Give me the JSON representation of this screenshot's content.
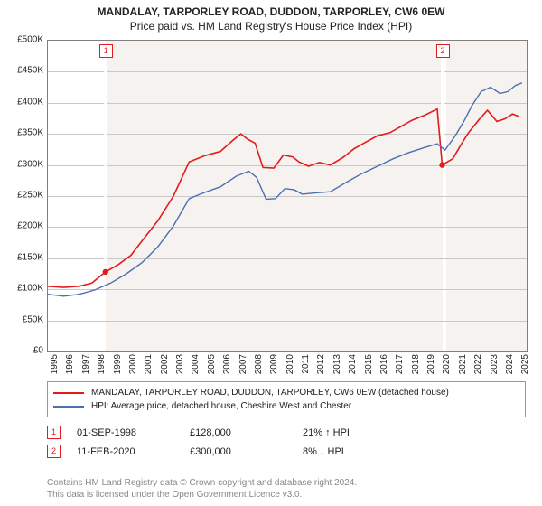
{
  "title_line1": "MANDALAY, TARPORLEY ROAD, DUDDON, TARPORLEY, CW6 0EW",
  "title_line2": "Price paid vs. HM Land Registry's House Price Index (HPI)",
  "chart": {
    "type": "line",
    "background_color": "#ffffff",
    "shade_color": "#f6f2ef",
    "grid_color": "#c8c8c8",
    "border_color": "#7f7f7f",
    "x_years": [
      1995,
      1996,
      1997,
      1998,
      1999,
      2000,
      2001,
      2002,
      2003,
      2004,
      2005,
      2006,
      2007,
      2008,
      2009,
      2010,
      2011,
      2012,
      2013,
      2014,
      2015,
      2016,
      2017,
      2018,
      2019,
      2020,
      2021,
      2022,
      2023,
      2024,
      2025
    ],
    "x_range": [
      1995,
      2025.5
    ],
    "ylim": [
      0,
      500000
    ],
    "ytick_step": 50000,
    "y_labels": [
      "£0",
      "£50K",
      "£100K",
      "£150K",
      "£200K",
      "£250K",
      "£300K",
      "£350K",
      "£400K",
      "£450K",
      "£500K"
    ],
    "tick_fontsize": 10,
    "series": [
      {
        "name": "red",
        "color": "#e41a1c",
        "width": 1.6,
        "points": [
          [
            1995,
            105000
          ],
          [
            1996,
            103000
          ],
          [
            1997,
            105000
          ],
          [
            1997.8,
            110000
          ],
          [
            1998.67,
            128000
          ],
          [
            1999.5,
            140000
          ],
          [
            2000.3,
            155000
          ],
          [
            2001,
            178000
          ],
          [
            2002,
            210000
          ],
          [
            2003,
            250000
          ],
          [
            2004,
            305000
          ],
          [
            2005,
            315000
          ],
          [
            2006,
            322000
          ],
          [
            2006.8,
            340000
          ],
          [
            2007.3,
            350000
          ],
          [
            2007.7,
            342000
          ],
          [
            2008.2,
            335000
          ],
          [
            2008.7,
            296000
          ],
          [
            2009.4,
            295000
          ],
          [
            2010,
            316000
          ],
          [
            2010.6,
            313000
          ],
          [
            2011,
            305000
          ],
          [
            2011.6,
            298000
          ],
          [
            2012.3,
            304000
          ],
          [
            2013,
            300000
          ],
          [
            2013.8,
            312000
          ],
          [
            2014.5,
            326000
          ],
          [
            2015.2,
            336000
          ],
          [
            2016,
            347000
          ],
          [
            2016.8,
            352000
          ],
          [
            2017.5,
            362000
          ],
          [
            2018.2,
            372000
          ],
          [
            2019,
            380000
          ],
          [
            2019.8,
            390000
          ],
          [
            2020.12,
            300000
          ],
          [
            2020.8,
            310000
          ],
          [
            2021.3,
            332000
          ],
          [
            2021.8,
            352000
          ],
          [
            2022.5,
            374000
          ],
          [
            2023,
            388000
          ],
          [
            2023.6,
            370000
          ],
          [
            2024.1,
            374000
          ],
          [
            2024.6,
            382000
          ],
          [
            2025,
            378000
          ]
        ]
      },
      {
        "name": "blue",
        "color": "#4a6fb3",
        "width": 1.4,
        "points": [
          [
            1995,
            92000
          ],
          [
            1996,
            89000
          ],
          [
            1997,
            92000
          ],
          [
            1998,
            99000
          ],
          [
            1999,
            110000
          ],
          [
            2000,
            125000
          ],
          [
            2001,
            143000
          ],
          [
            2002,
            168000
          ],
          [
            2003,
            202000
          ],
          [
            2004,
            246000
          ],
          [
            2005,
            256000
          ],
          [
            2006,
            265000
          ],
          [
            2007,
            282000
          ],
          [
            2007.8,
            290000
          ],
          [
            2008.3,
            280000
          ],
          [
            2008.9,
            245000
          ],
          [
            2009.5,
            246000
          ],
          [
            2010.1,
            262000
          ],
          [
            2010.7,
            260000
          ],
          [
            2011.2,
            253000
          ],
          [
            2012,
            255000
          ],
          [
            2013,
            257000
          ],
          [
            2014,
            272000
          ],
          [
            2015,
            286000
          ],
          [
            2016,
            298000
          ],
          [
            2017,
            310000
          ],
          [
            2018,
            320000
          ],
          [
            2019,
            328000
          ],
          [
            2019.8,
            334000
          ],
          [
            2020.3,
            324000
          ],
          [
            2020.9,
            345000
          ],
          [
            2021.5,
            370000
          ],
          [
            2022,
            395000
          ],
          [
            2022.6,
            418000
          ],
          [
            2023.2,
            425000
          ],
          [
            2023.8,
            415000
          ],
          [
            2024.3,
            418000
          ],
          [
            2024.8,
            428000
          ],
          [
            2025.2,
            432000
          ]
        ]
      }
    ],
    "transactions": [
      {
        "n": "1",
        "year": 1998.67,
        "value": 128000,
        "color": "#e41a1c"
      },
      {
        "n": "2",
        "year": 2020.12,
        "value": 300000,
        "color": "#e41a1c"
      }
    ]
  },
  "legend": {
    "series1_label": "MANDALAY, TARPORLEY ROAD, DUDDON, TARPORLEY, CW6 0EW (detached house)",
    "series2_label": "HPI: Average price, detached house, Cheshire West and Chester",
    "series1_color": "#e41a1c",
    "series2_color": "#4a6fb3"
  },
  "transactions_table": [
    {
      "n": "1",
      "color": "#e41a1c",
      "date": "01-SEP-1998",
      "price": "£128,000",
      "delta": "21% ↑ HPI"
    },
    {
      "n": "2",
      "color": "#e41a1c",
      "date": "11-FEB-2020",
      "price": "£300,000",
      "delta": "8% ↓ HPI"
    }
  ],
  "footer_line1": "Contains HM Land Registry data © Crown copyright and database right 2024.",
  "footer_line2": "This data is licensed under the Open Government Licence v3.0."
}
